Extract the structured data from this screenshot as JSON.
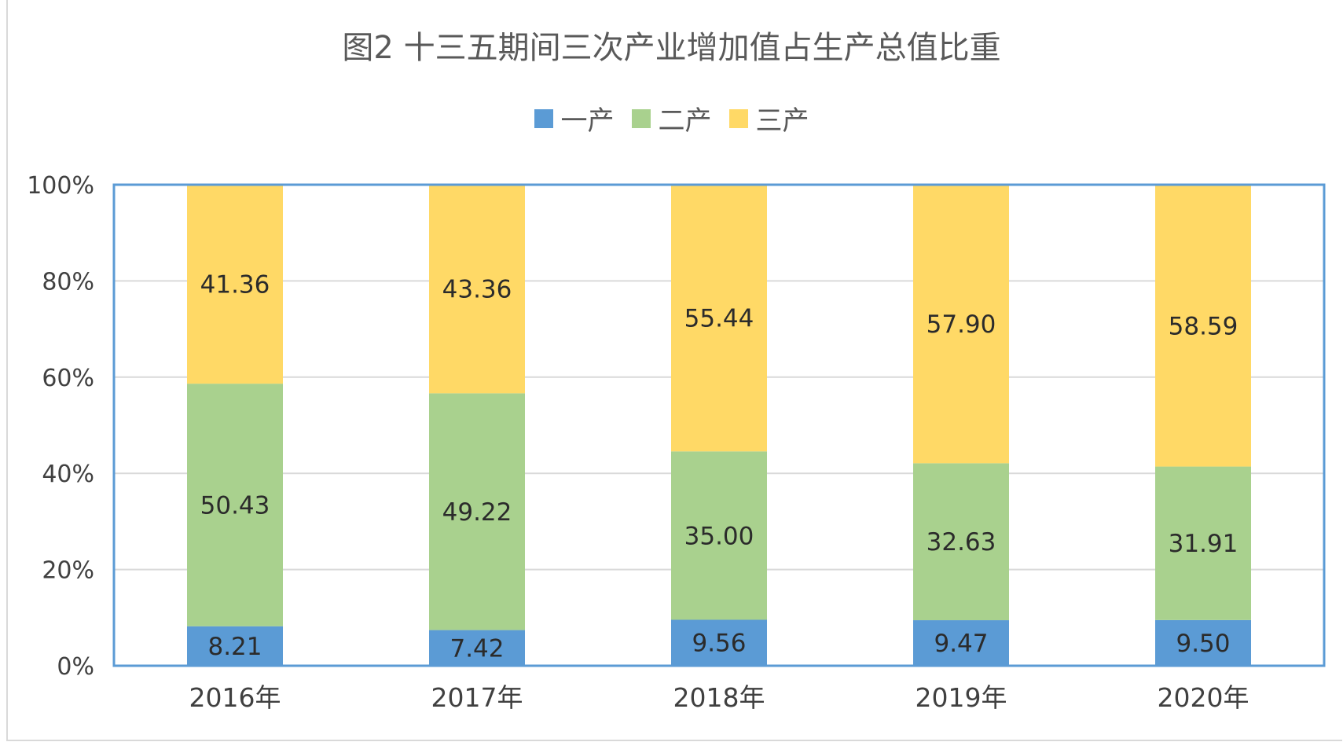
{
  "chart_data": {
    "type": "bar",
    "stacked": true,
    "percent_stacked": true,
    "title": "图2  十三五期间三次产业增加值占生产总值比重",
    "categories": [
      "2016年",
      "2017年",
      "2018年",
      "2019年",
      "2020年"
    ],
    "series": [
      {
        "name": "一产",
        "color": "#5b9bd5",
        "values": [
          8.21,
          7.42,
          9.56,
          9.47,
          9.5
        ]
      },
      {
        "name": "二产",
        "color": "#a9d18e",
        "values": [
          50.43,
          49.22,
          35.0,
          32.63,
          31.91
        ]
      },
      {
        "name": "三产",
        "color": "#ffd966",
        "values": [
          41.36,
          43.36,
          55.44,
          57.9,
          58.59
        ]
      }
    ],
    "y_ticks": [
      "0%",
      "20%",
      "40%",
      "60%",
      "80%",
      "100%"
    ],
    "ylim": [
      0,
      100
    ],
    "grid": true,
    "legend_position": "top",
    "plot_border_color": "#5b9bd5",
    "gridline_color": "#d9d9d9"
  }
}
